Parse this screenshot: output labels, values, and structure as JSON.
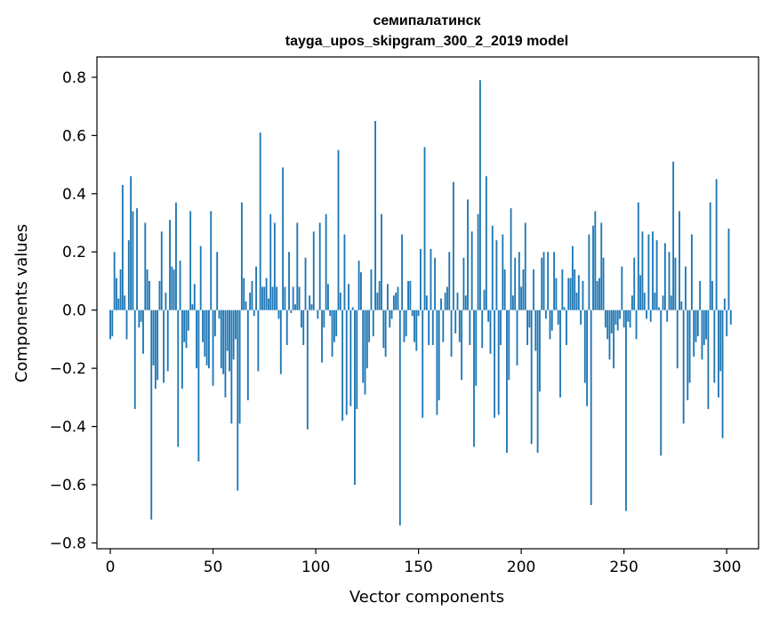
{
  "chart_data": {
    "type": "bar",
    "title": "семипалатинск",
    "subtitle": "tayga_upos_skipgram_300_2_2019 model",
    "xlabel": "Vector components",
    "ylabel": "Components values",
    "xlim": [
      -6.5,
      315.5
    ],
    "ylim": [
      -0.82,
      0.87
    ],
    "xticks": [
      0,
      50,
      100,
      150,
      200,
      250,
      300
    ],
    "xtick_labels": [
      "0",
      "50",
      "100",
      "150",
      "200",
      "250",
      "300"
    ],
    "yticks": [
      0.8,
      0.6,
      0.4,
      0.2,
      0.0,
      -0.2,
      -0.4,
      -0.6,
      -0.8
    ],
    "ytick_labels": [
      "0.8",
      "0.6",
      "0.4",
      "0.2",
      "0.0",
      "−0.2",
      "−0.4",
      "−0.6",
      "−0.8"
    ],
    "bar_color": "#1f77b4",
    "series": [
      {
        "name": "семипалатинск",
        "values": [
          -0.1,
          -0.09,
          0.2,
          0.11,
          0.04,
          0.14,
          0.43,
          0.05,
          -0.1,
          0.24,
          0.46,
          0.34,
          -0.34,
          0.35,
          -0.06,
          -0.04,
          -0.15,
          0.3,
          0.14,
          0.1,
          -0.72,
          -0.19,
          -0.27,
          -0.24,
          0.1,
          0.27,
          -0.25,
          0.06,
          -0.21,
          0.31,
          0.15,
          0.14,
          0.37,
          -0.47,
          0.17,
          -0.27,
          -0.11,
          -0.13,
          -0.07,
          0.34,
          0.02,
          0.09,
          -0.2,
          -0.52,
          0.22,
          -0.11,
          -0.16,
          -0.19,
          -0.2,
          0.34,
          -0.26,
          -0.09,
          0.2,
          -0.03,
          -0.2,
          -0.22,
          -0.3,
          -0.14,
          -0.21,
          -0.39,
          -0.17,
          -0.1,
          -0.62,
          -0.39,
          0.37,
          0.11,
          0.03,
          -0.31,
          0.06,
          0.1,
          -0.02,
          0.15,
          -0.21,
          0.61,
          0.08,
          0.08,
          0.11,
          0.04,
          0.33,
          0.08,
          0.3,
          0.08,
          -0.03,
          -0.22,
          0.49,
          0.08,
          -0.12,
          0.2,
          -0.01,
          0.08,
          0.02,
          0.3,
          0.08,
          -0.06,
          -0.12,
          0.18,
          -0.41,
          0.05,
          0.02,
          0.27,
          0.0,
          -0.03,
          0.3,
          -0.18,
          -0.06,
          0.33,
          0.09,
          -0.02,
          -0.16,
          -0.11,
          -0.09,
          0.55,
          0.06,
          -0.38,
          0.26,
          -0.36,
          0.09,
          -0.33,
          0.01,
          -0.6,
          -0.34,
          0.17,
          0.13,
          -0.25,
          -0.29,
          -0.2,
          -0.11,
          0.14,
          -0.09,
          0.65,
          0.06,
          0.1,
          0.33,
          -0.13,
          -0.16,
          0.09,
          -0.06,
          -0.03,
          0.05,
          0.06,
          0.08,
          -0.74,
          0.26,
          -0.11,
          -0.09,
          0.1,
          0.1,
          -0.02,
          -0.11,
          -0.14,
          -0.02,
          0.21,
          -0.37,
          0.56,
          0.05,
          -0.12,
          0.21,
          -0.12,
          0.18,
          -0.36,
          -0.31,
          0.04,
          -0.11,
          0.06,
          0.08,
          0.2,
          -0.16,
          0.44,
          -0.08,
          0.06,
          -0.11,
          -0.24,
          0.18,
          0.05,
          0.38,
          -0.12,
          0.27,
          -0.47,
          -0.26,
          0.33,
          0.79,
          -0.13,
          0.07,
          0.46,
          -0.04,
          -0.15,
          0.29,
          -0.37,
          0.24,
          -0.36,
          -0.12,
          0.26,
          0.14,
          -0.49,
          -0.24,
          0.35,
          0.05,
          0.18,
          -0.19,
          0.2,
          0.08,
          0.14,
          0.3,
          -0.12,
          -0.06,
          -0.46,
          0.14,
          -0.14,
          -0.49,
          -0.28,
          0.18,
          0.2,
          -0.03,
          0.2,
          -0.1,
          -0.07,
          0.2,
          0.11,
          -0.05,
          -0.3,
          0.14,
          0.01,
          -0.12,
          0.11,
          0.11,
          0.22,
          0.14,
          0.06,
          0.12,
          -0.05,
          0.1,
          -0.25,
          -0.33,
          0.26,
          -0.67,
          0.29,
          0.34,
          0.1,
          0.11,
          0.3,
          0.18,
          -0.06,
          -0.1,
          -0.17,
          -0.08,
          -0.2,
          -0.05,
          -0.07,
          -0.03,
          0.15,
          -0.06,
          -0.69,
          -0.04,
          -0.06,
          0.05,
          0.18,
          -0.1,
          0.37,
          0.12,
          0.27,
          0.06,
          -0.03,
          0.26,
          -0.04,
          0.27,
          0.06,
          0.24,
          0.01,
          -0.5,
          0.05,
          0.23,
          -0.04,
          0.2,
          0.05,
          0.51,
          0.18,
          -0.2,
          0.34,
          0.03,
          -0.39,
          0.15,
          -0.31,
          -0.25,
          0.26,
          -0.16,
          -0.11,
          -0.09,
          0.1,
          -0.17,
          -0.12,
          -0.1,
          -0.34,
          0.37,
          0.1,
          -0.25,
          0.45,
          -0.3,
          -0.21,
          -0.44,
          0.04,
          -0.09,
          0.28,
          -0.05
        ]
      }
    ]
  }
}
